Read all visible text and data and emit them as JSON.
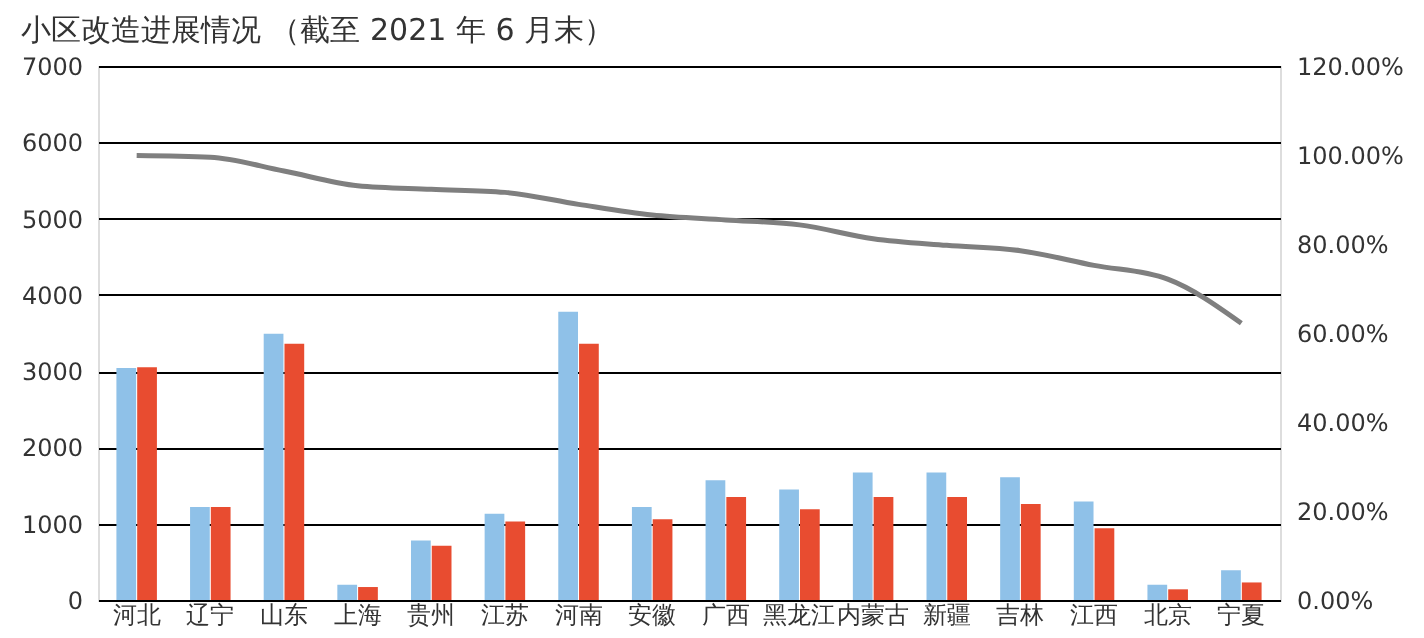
{
  "chart_data": {
    "type": "bar",
    "title": "小区改造进展情况 （截至 2021 年 6 月末）",
    "categories": [
      "河北",
      "辽宁",
      "山东",
      "上海",
      "贵州",
      "江苏",
      "河南",
      "安徽",
      "广西",
      "黑龙江",
      "内蒙古",
      "新疆",
      "吉林",
      "江西",
      "北京",
      "宁夏"
    ],
    "series": [
      {
        "color": "#8fc1e8",
        "values": [
          3040,
          1220,
          3490,
          200,
          780,
          1130,
          3780,
          1220,
          1570,
          1450,
          1670,
          1670,
          1610,
          1290,
          200,
          390
        ]
      },
      {
        "color": "#e84c30",
        "values": [
          3050,
          1220,
          3360,
          170,
          710,
          1030,
          3360,
          1060,
          1350,
          1190,
          1350,
          1350,
          1260,
          940,
          140,
          230
        ]
      },
      {
        "type": "line",
        "axis": "y2",
        "color": "#7f7f7f",
        "values": [
          99.9,
          99.5,
          96.4,
          93.1,
          92.3,
          91.6,
          88.9,
          86.5,
          85.4,
          84.3,
          81.2,
          79.7,
          78.5,
          75.2,
          72.1,
          62.2
        ]
      }
    ],
    "ylim": [
      0,
      7000
    ],
    "yticks": [
      0,
      1000,
      2000,
      3000,
      4000,
      5000,
      6000,
      7000
    ],
    "y2lim": [
      0,
      120
    ],
    "y2ticks": [
      {
        "value": 0,
        "label": "0.00%"
      },
      {
        "value": 20,
        "label": "20.00%"
      },
      {
        "value": 40,
        "label": "40.00%"
      },
      {
        "value": 60,
        "label": "60.00%"
      },
      {
        "value": 80,
        "label": "80.00%"
      },
      {
        "value": 100,
        "label": "100.00%"
      },
      {
        "value": 120,
        "label": "120.00%"
      }
    ],
    "grid": "y",
    "legend": false,
    "marker": "none",
    "line_style": "solid"
  }
}
